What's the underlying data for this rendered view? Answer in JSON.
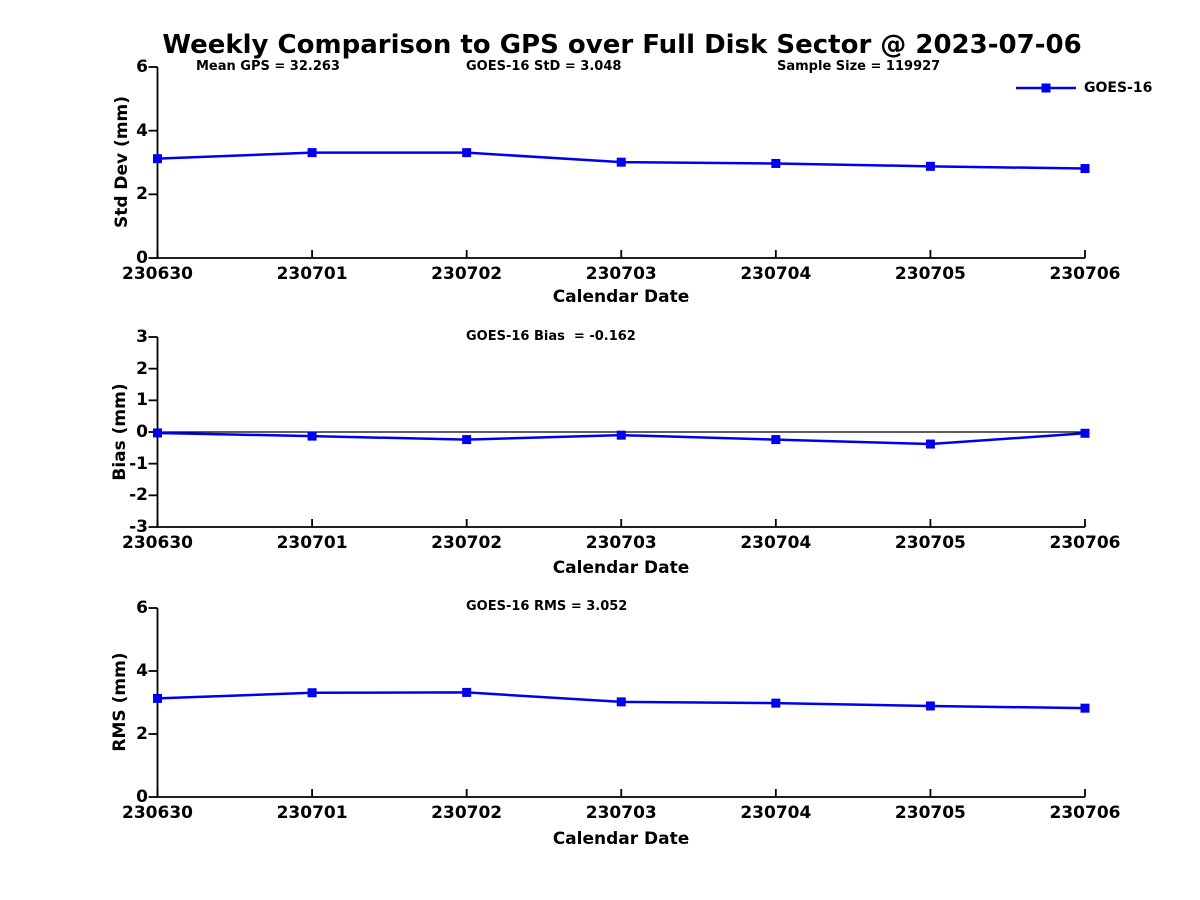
{
  "figure": {
    "title": "Weekly Comparison to GPS over Full Disk Sector @ 2023-07-06"
  },
  "colors": {
    "series": "#0000EE",
    "axis": "#000000",
    "background": "#ffffff"
  },
  "legend": {
    "label": "GOES-16",
    "marker": "filled-square",
    "position": "top-right"
  },
  "annotations": {
    "mean_gps": "Mean GPS = 32.263",
    "std": "GOES-16 StD = 3.048",
    "sample_size": "Sample Size = 119927"
  },
  "x_axis": {
    "label": "Calendar Date"
  },
  "chart_data": [
    {
      "type": "line",
      "title": "",
      "ylabel": "Std Dev (mm)",
      "xlabel": "Calendar Date",
      "categories": [
        "230630",
        "230701",
        "230702",
        "230703",
        "230704",
        "230705",
        "230706"
      ],
      "series": [
        {
          "name": "GOES-16",
          "values": [
            3.12,
            3.31,
            3.31,
            3.01,
            2.97,
            2.88,
            2.81
          ]
        }
      ],
      "ylim": [
        0,
        6
      ],
      "yticks": [
        0,
        2,
        4,
        6
      ],
      "grid": false,
      "zero_line": false,
      "legend_position": "upper right"
    },
    {
      "type": "line",
      "title": "GOES-16 Bias  = -0.162",
      "ylabel": "Bias (mm)",
      "xlabel": "Calendar Date",
      "categories": [
        "230630",
        "230701",
        "230702",
        "230703",
        "230704",
        "230705",
        "230706"
      ],
      "series": [
        {
          "name": "GOES-16",
          "values": [
            -0.03,
            -0.13,
            -0.24,
            -0.1,
            -0.24,
            -0.38,
            -0.04
          ]
        }
      ],
      "ylim": [
        -3,
        3
      ],
      "yticks": [
        -3,
        -2,
        -1,
        0,
        1,
        2,
        3
      ],
      "grid": false,
      "zero_line": true
    },
    {
      "type": "line",
      "title": "GOES-16 RMS = 3.052",
      "ylabel": "RMS (mm)",
      "xlabel": "Calendar Date",
      "categories": [
        "230630",
        "230701",
        "230702",
        "230703",
        "230704",
        "230705",
        "230706"
      ],
      "series": [
        {
          "name": "GOES-16",
          "values": [
            3.13,
            3.31,
            3.32,
            3.02,
            2.98,
            2.89,
            2.82
          ]
        }
      ],
      "ylim": [
        0,
        6
      ],
      "yticks": [
        0,
        2,
        4,
        6
      ],
      "grid": false,
      "zero_line": false
    }
  ]
}
